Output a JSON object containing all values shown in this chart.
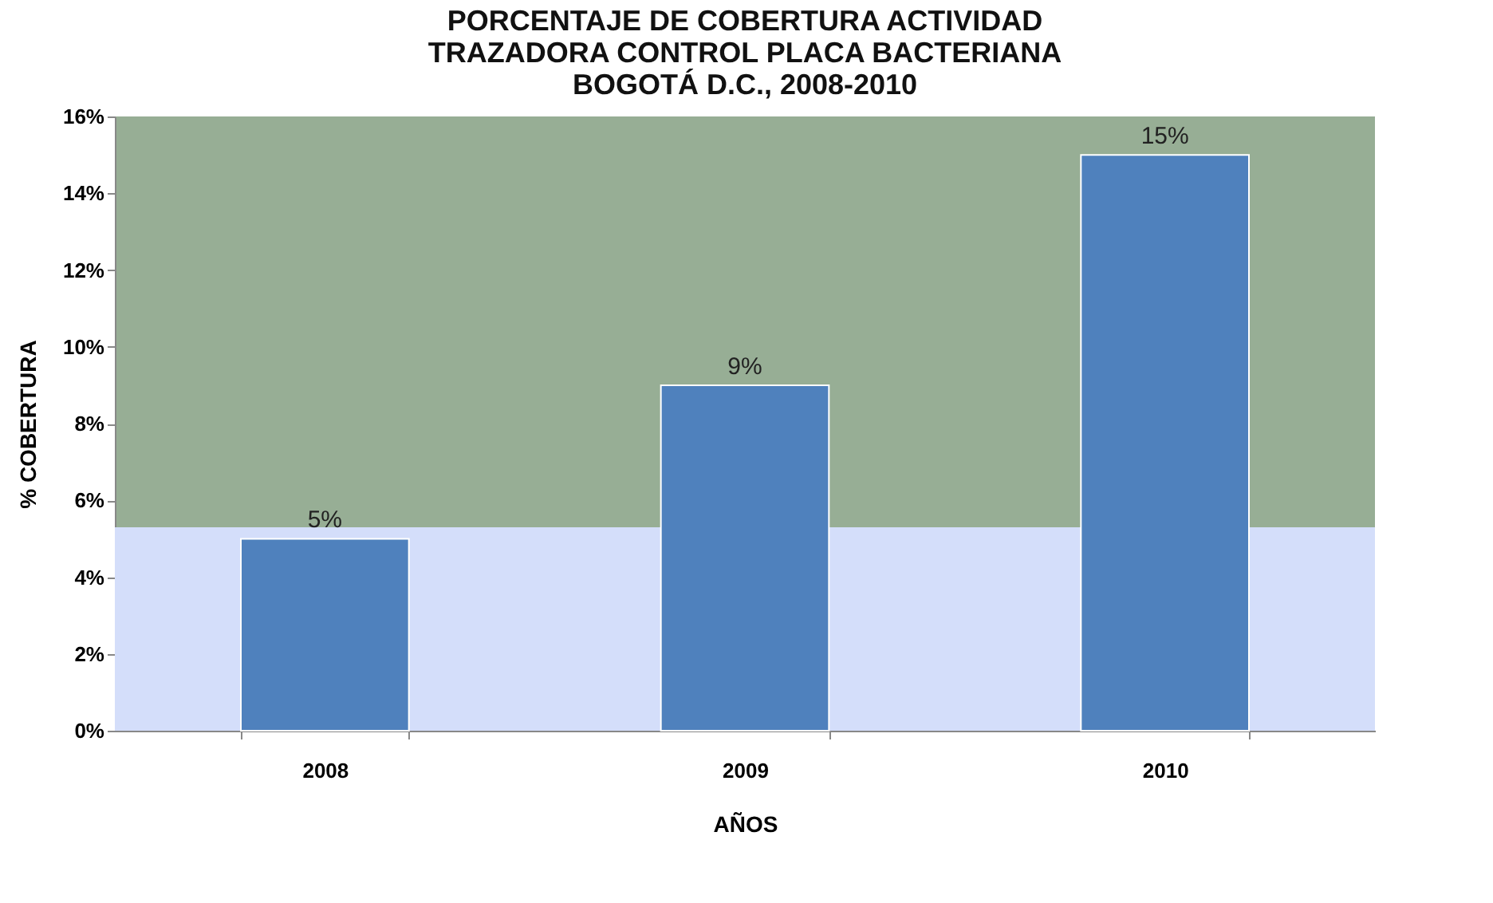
{
  "chart_data": {
    "type": "bar",
    "title": [
      "PORCENTAJE DE COBERTURA ACTIVIDAD",
      "TRAZADORA  CONTROL PLACA BACTERIANA",
      "BOGOTÁ D.C., 2008-2010"
    ],
    "xlabel": "AÑOS",
    "ylabel": "% COBERTURA",
    "categories": [
      "2008",
      "2009",
      "2010"
    ],
    "series": [
      {
        "color": "#4f81bd",
        "values": [
          5,
          9,
          15
        ]
      }
    ],
    "value_labels": [
      "5%",
      "9%",
      "15%"
    ],
    "ylim": [
      0,
      16
    ],
    "yticks": [
      {
        "value": 0,
        "label": "0%"
      },
      {
        "value": 2,
        "label": "2%"
      },
      {
        "value": 4,
        "label": "4%"
      },
      {
        "value": 6,
        "label": "6%"
      },
      {
        "value": 8,
        "label": "8%"
      },
      {
        "value": 10,
        "label": "10%"
      },
      {
        "value": 12,
        "label": "12%"
      },
      {
        "value": 14,
        "label": "14%"
      },
      {
        "value": 16,
        "label": "16%"
      }
    ],
    "bands": [
      {
        "axis": "y",
        "from": 0,
        "to": 5.3,
        "color": "#d4defa"
      }
    ],
    "grid": false
  }
}
